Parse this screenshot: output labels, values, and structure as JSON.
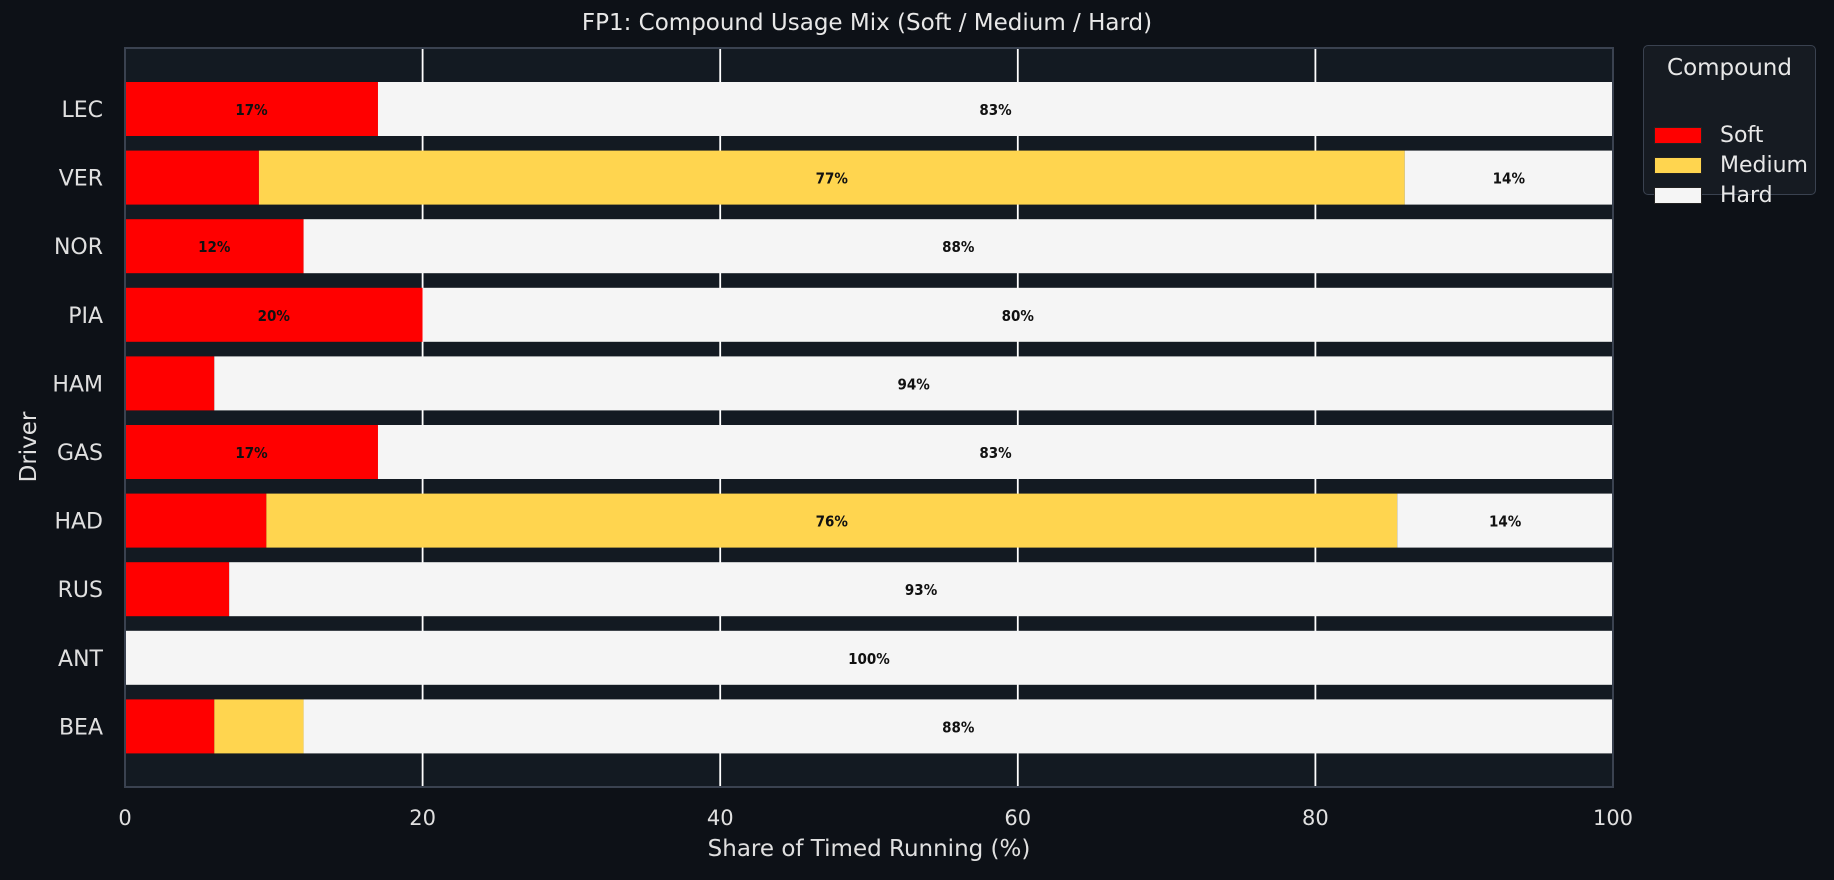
{
  "colors": {
    "background": "#0d1117",
    "plot_background": "#131a22",
    "frame": "#3a4250",
    "grid": "#ffffff",
    "soft": "#ff0000",
    "medium": "#ffd54f",
    "hard": "#f5f5f5",
    "bar_label": "#111111"
  },
  "legend": {
    "title": "Compound",
    "items": [
      {
        "label": "Soft",
        "color": "#ff0000"
      },
      {
        "label": "Medium",
        "color": "#ffd54f"
      },
      {
        "label": "Hard",
        "color": "#f5f5f5"
      }
    ]
  },
  "chart_data": {
    "type": "bar",
    "orientation": "horizontal",
    "stacked": true,
    "title": "FP1: Compound Usage Mix (Soft / Medium / Hard)",
    "xlabel": "Share of Timed Running (%)",
    "ylabel": "Driver",
    "xlim": [
      0,
      100
    ],
    "xticks": [
      0,
      20,
      40,
      60,
      80,
      100
    ],
    "grid": "vertical",
    "legend_position": "outside top-right",
    "categories": [
      "LEC",
      "VER",
      "NOR",
      "PIA",
      "HAM",
      "GAS",
      "HAD",
      "RUS",
      "ANT",
      "BEA"
    ],
    "series": [
      {
        "name": "Soft",
        "values": [
          17,
          9,
          12,
          20,
          6,
          17,
          9.5,
          7,
          0,
          6
        ],
        "labels": [
          "17%",
          "",
          "12%",
          "20%",
          "",
          "17%",
          "",
          "",
          "",
          ""
        ]
      },
      {
        "name": "Medium",
        "values": [
          0,
          77,
          0,
          0,
          0,
          0,
          76,
          0,
          0,
          6
        ],
        "labels": [
          "",
          "77%",
          "",
          "",
          "",
          "",
          "76%",
          "",
          "",
          ""
        ]
      },
      {
        "name": "Hard",
        "values": [
          83,
          14,
          88,
          80,
          94,
          83,
          14.5,
          93,
          100,
          88
        ],
        "labels": [
          "83%",
          "14%",
          "88%",
          "80%",
          "94%",
          "83%",
          "14%",
          "93%",
          "100%",
          "88%"
        ]
      }
    ]
  }
}
